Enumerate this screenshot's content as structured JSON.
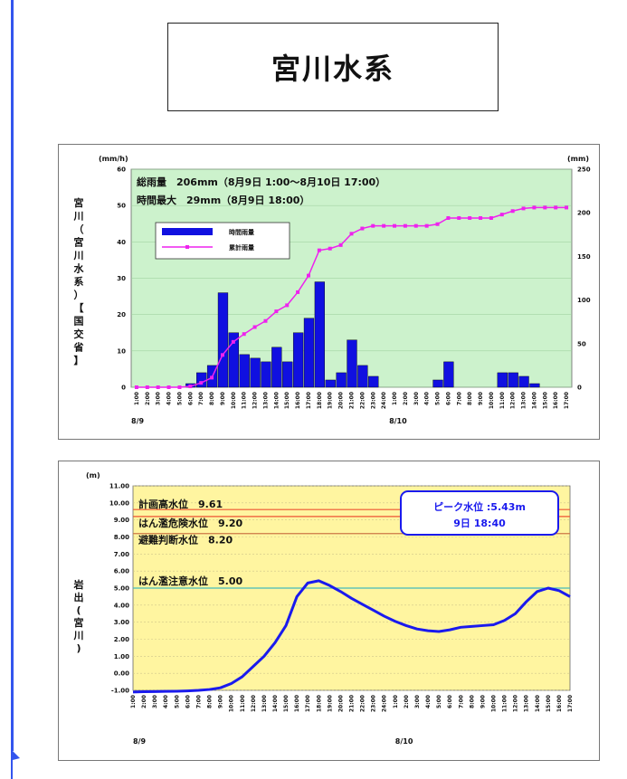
{
  "page": {
    "title": "宮川水系"
  },
  "colors": {
    "frame": "#3355ee"
  },
  "chart_data": [
    {
      "type": "bar",
      "name": "rainfall",
      "station_label": "宮川（宮川水系）【国交省】",
      "left_unit": "(mm/h)",
      "right_unit": "(mm)",
      "annotations": [
        "総雨量　206mm（8月9日 1:00～8月10日 17:00）",
        "時間最大　29mm（8月9日 18:00）"
      ],
      "legend": [
        {
          "name": "時間雨量",
          "color": "#1010e0",
          "kind": "bar"
        },
        {
          "name": "累計雨量",
          "color": "#ee22ee",
          "kind": "line"
        }
      ],
      "date_labels": [
        {
          "label": "8/9",
          "index": 0
        },
        {
          "label": "8/10",
          "index": 24
        }
      ],
      "categories": [
        "1:00",
        "2:00",
        "3:00",
        "4:00",
        "5:00",
        "6:00",
        "7:00",
        "8:00",
        "9:00",
        "10:00",
        "11:00",
        "12:00",
        "13:00",
        "14:00",
        "15:00",
        "16:00",
        "17:00",
        "18:00",
        "19:00",
        "20:00",
        "21:00",
        "22:00",
        "23:00",
        "24:00",
        "1:00",
        "2:00",
        "3:00",
        "4:00",
        "5:00",
        "6:00",
        "7:00",
        "8:00",
        "9:00",
        "10:00",
        "11:00",
        "12:00",
        "13:00",
        "14:00",
        "15:00",
        "16:00",
        "17:00"
      ],
      "series": [
        {
          "name": "時間雨量",
          "axis": "left",
          "values": [
            0,
            0,
            0,
            0,
            0,
            1,
            4,
            6,
            26,
            15,
            9,
            8,
            7,
            11,
            7,
            15,
            19,
            29,
            2,
            4,
            13,
            6,
            3,
            0,
            0,
            0,
            0,
            0,
            2,
            7,
            0,
            0,
            0,
            0,
            4,
            4,
            3,
            1,
            0,
            0,
            0
          ]
        },
        {
          "name": "累計雨量",
          "axis": "right",
          "values": [
            0,
            0,
            0,
            0,
            0,
            1,
            5,
            11,
            37,
            52,
            61,
            69,
            76,
            87,
            94,
            109,
            128,
            157,
            159,
            163,
            176,
            182,
            185,
            185,
            185,
            185,
            185,
            185,
            187,
            194,
            194,
            194,
            194,
            194,
            198,
            202,
            205,
            206,
            206,
            206,
            206
          ]
        }
      ],
      "ylim_left": [
        0,
        60
      ],
      "yticks_left": [
        0,
        10,
        20,
        30,
        40,
        50,
        60
      ],
      "ylim_right": [
        0,
        250
      ],
      "yticks_right": [
        0,
        50,
        100,
        150,
        200,
        250
      ],
      "background": "#ccf2cc",
      "grid": true
    },
    {
      "type": "line",
      "name": "water_level",
      "unit": "(m)",
      "station_label": "岩出(宮川)",
      "date_labels": [
        {
          "label": "8/9",
          "index": 0
        },
        {
          "label": "8/10",
          "index": 24
        }
      ],
      "categories": [
        "1:00",
        "2:00",
        "3:00",
        "4:00",
        "5:00",
        "6:00",
        "7:00",
        "8:00",
        "9:00",
        "10:00",
        "11:00",
        "12:00",
        "13:00",
        "14:00",
        "15:00",
        "16:00",
        "17:00",
        "18:00",
        "19:00",
        "20:00",
        "21:00",
        "22:00",
        "23:00",
        "24:00",
        "1:00",
        "2:00",
        "3:00",
        "4:00",
        "5:00",
        "6:00",
        "7:00",
        "8:00",
        "9:00",
        "10:00",
        "11:00",
        "12:00",
        "13:00",
        "14:00",
        "15:00",
        "16:00",
        "17:00"
      ],
      "series": [
        {
          "name": "水位",
          "values": [
            -1.1,
            -1.08,
            -1.07,
            -1.06,
            -1.05,
            -1.03,
            -1.0,
            -0.95,
            -0.85,
            -0.6,
            -0.2,
            0.4,
            1.0,
            1.8,
            2.8,
            4.5,
            5.3,
            5.43,
            5.15,
            4.8,
            4.4,
            4.05,
            3.7,
            3.35,
            3.05,
            2.8,
            2.6,
            2.5,
            2.45,
            2.55,
            2.7,
            2.75,
            2.8,
            2.85,
            3.1,
            3.5,
            4.2,
            4.8,
            5.0,
            4.85,
            4.5
          ]
        }
      ],
      "reference_lines": [
        {
          "label": "計画高水位　9.61",
          "value": 9.61,
          "color": "#ee5533"
        },
        {
          "label": "はん濫危険水位　9.20",
          "value": 9.2,
          "color": "#ee5533"
        },
        {
          "label": "避難判断水位　8.20",
          "value": 8.2,
          "color": "#cc7744"
        },
        {
          "label": "はん濫注意水位　5.00",
          "value": 5.0,
          "color": "#44bbbb"
        }
      ],
      "peak_label": [
        "ピーク水位 :5.43m",
        "9日 18:40"
      ],
      "ylim": [
        -1.0,
        11.0
      ],
      "yticks": [
        "-1.00",
        "0.00",
        "1.00",
        "2.00",
        "3.00",
        "4.00",
        "5.00",
        "6.00",
        "7.00",
        "8.00",
        "9.00",
        "10.00",
        "11.00"
      ],
      "background": "#fff5a0",
      "grid": true
    }
  ]
}
